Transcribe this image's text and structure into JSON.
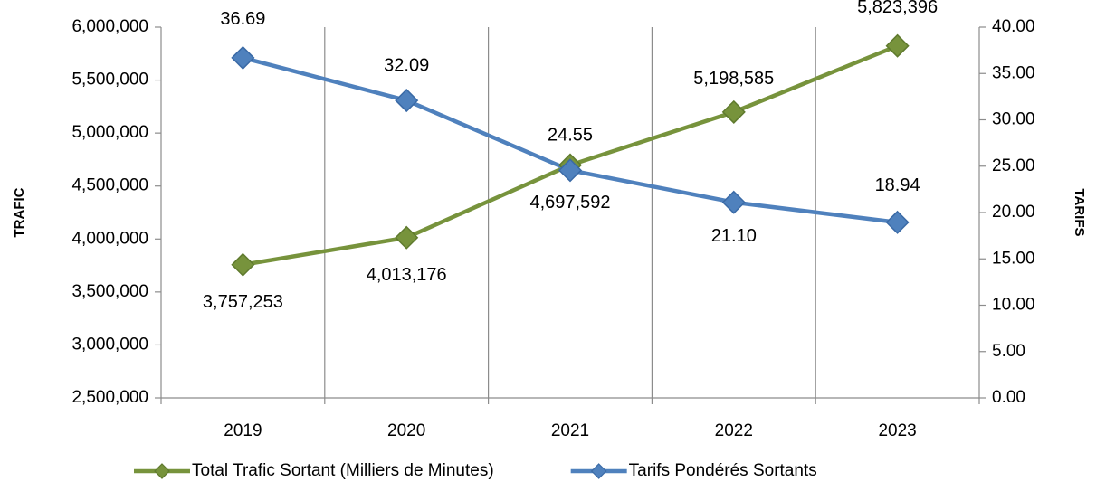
{
  "chart_data": {
    "type": "line",
    "categories": [
      "2019",
      "2020",
      "2021",
      "2022",
      "2023"
    ],
    "series": [
      {
        "name": "Total Trafic Sortant (Milliers de Minutes)",
        "color": "#77933c",
        "values": [
          3757253,
          4013176,
          4697592,
          5198585,
          5823396
        ],
        "value_labels": [
          "3,757,253",
          "4,013,176",
          "4,697,592",
          "5,198,585",
          "5,823,396"
        ]
      },
      {
        "name": "Tarifs Pondérés Sortants",
        "color": "#4f81bd",
        "axis": "y2",
        "values": [
          36.69,
          32.09,
          24.55,
          21.1,
          18.94
        ],
        "value_labels": [
          "36.69",
          "32.09",
          "24.55",
          "21.10",
          "18.94"
        ]
      }
    ],
    "ylabel": "TRAFIC",
    "y2label": "TARIFS",
    "ylim": [
      2500000,
      6000000
    ],
    "yticks": [
      {
        "value": 2500000,
        "label": "2,500,000"
      },
      {
        "value": 3000000,
        "label": "3,000,000"
      },
      {
        "value": 3500000,
        "label": "3,500,000"
      },
      {
        "value": 4000000,
        "label": "4,000,000"
      },
      {
        "value": 4500000,
        "label": "4,500,000"
      },
      {
        "value": 5000000,
        "label": "5,000,000"
      },
      {
        "value": 5500000,
        "label": "5,500,000"
      },
      {
        "value": 6000000,
        "label": "6,000,000"
      }
    ],
    "y2lim": [
      0,
      40
    ],
    "y2ticks": [
      {
        "value": 0,
        "label": "0.00"
      },
      {
        "value": 5,
        "label": "5.00"
      },
      {
        "value": 10,
        "label": "10.00"
      },
      {
        "value": 15,
        "label": "15.00"
      },
      {
        "value": 20,
        "label": "20.00"
      },
      {
        "value": 25,
        "label": "25.00"
      },
      {
        "value": 30,
        "label": "30.00"
      },
      {
        "value": 35,
        "label": "35.00"
      },
      {
        "value": 40,
        "label": "40.00"
      }
    ],
    "grid": true,
    "legend": "bottom"
  }
}
